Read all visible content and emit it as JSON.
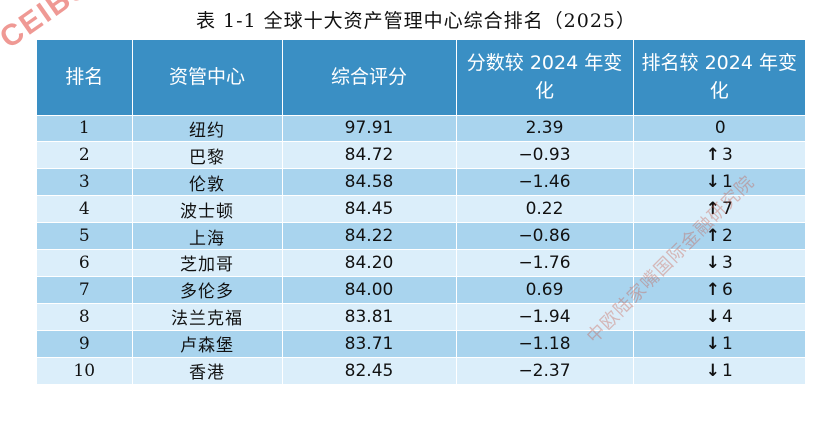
{
  "title": "表 1-1   全球十大资产管理中心综合排名（2025）",
  "watermark_top": "CEIBS",
  "watermark_bottom": "中欧陆家嘴国际金融研究院",
  "headers": [
    "排名",
    "资管中心",
    "综合评分",
    "分数较 2024 年变化",
    "排名较 2024 年变化"
  ],
  "rows": [
    {
      "rank": "1",
      "city": "纽约",
      "score": "97.91",
      "score_change": "2.39",
      "arrow": "",
      "rank_change": "0"
    },
    {
      "rank": "2",
      "city": "巴黎",
      "score": "84.72",
      "score_change": "−0.93",
      "arrow": "↑",
      "rank_change": "3"
    },
    {
      "rank": "3",
      "city": "伦敦",
      "score": "84.58",
      "score_change": "−1.46",
      "arrow": "↓",
      "rank_change": "1"
    },
    {
      "rank": "4",
      "city": "波士顿",
      "score": "84.45",
      "score_change": "0.22",
      "arrow": "↑",
      "rank_change": "7"
    },
    {
      "rank": "5",
      "city": "上海",
      "score": "84.22",
      "score_change": "−0.86",
      "arrow": "↑",
      "rank_change": "2"
    },
    {
      "rank": "6",
      "city": "芝加哥",
      "score": "84.20",
      "score_change": "−1.76",
      "arrow": "↓",
      "rank_change": "3"
    },
    {
      "rank": "7",
      "city": "多伦多",
      "score": "84.00",
      "score_change": "0.69",
      "arrow": "↑",
      "rank_change": "6"
    },
    {
      "rank": "8",
      "city": "法兰克福",
      "score": "83.81",
      "score_change": "−1.94",
      "arrow": "↓",
      "rank_change": "4"
    },
    {
      "rank": "9",
      "city": "卢森堡",
      "score": "83.71",
      "score_change": "−1.18",
      "arrow": "↓",
      "rank_change": "1"
    },
    {
      "rank": "10",
      "city": "香港",
      "score": "82.45",
      "score_change": "−2.37",
      "arrow": "↓",
      "rank_change": "1"
    }
  ]
}
